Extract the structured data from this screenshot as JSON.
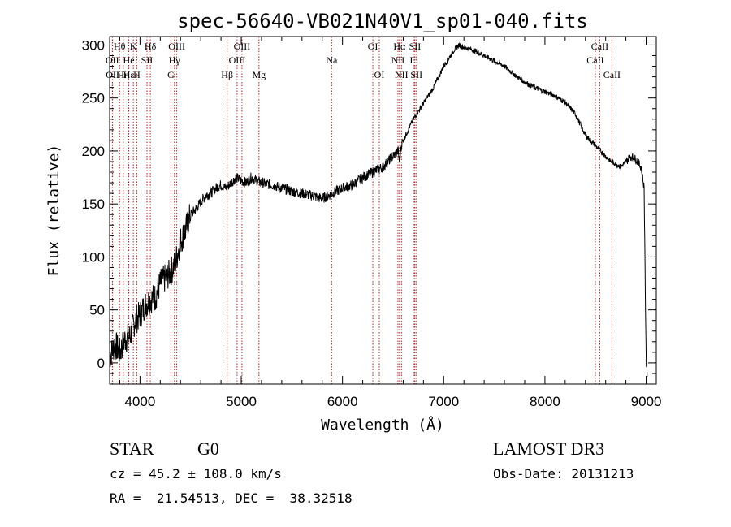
{
  "chart_data": {
    "type": "line",
    "title": "spec-56640-VB021N40V1_sp01-040.fits",
    "xlabel": "Wavelength (Å)",
    "ylabel": "Flux (relative)",
    "xlim": [
      3700,
      9100
    ],
    "ylim": [
      -20,
      308
    ],
    "xticks": [
      4000,
      5000,
      6000,
      7000,
      8000,
      9000
    ],
    "yticks": [
      0,
      50,
      100,
      150,
      200,
      250,
      300
    ],
    "grid": false,
    "series": [
      {
        "name": "flux",
        "x": [
          3700,
          3750,
          3800,
          3850,
          3900,
          3950,
          4000,
          4050,
          4100,
          4150,
          4200,
          4250,
          4300,
          4350,
          4400,
          4450,
          4500,
          4550,
          4600,
          4650,
          4700,
          4750,
          4800,
          4850,
          4900,
          4950,
          5000,
          5050,
          5100,
          5150,
          5200,
          5300,
          5400,
          5500,
          5600,
          5700,
          5800,
          5900,
          6000,
          6100,
          6200,
          6300,
          6400,
          6500,
          6550,
          6563,
          6580,
          6600,
          6650,
          6700,
          6800,
          6900,
          7000,
          7100,
          7150,
          7200,
          7300,
          7400,
          7500,
          7600,
          7700,
          7800,
          7900,
          8000,
          8100,
          8200,
          8300,
          8400,
          8500,
          8550,
          8600,
          8650,
          8700,
          8750,
          8800,
          8850,
          8900,
          8950,
          8980,
          9000,
          9010
        ],
        "y": [
          5,
          18,
          10,
          22,
          25,
          40,
          45,
          55,
          60,
          62,
          75,
          80,
          85,
          95,
          115,
          125,
          140,
          145,
          152,
          158,
          160,
          165,
          168,
          165,
          170,
          175,
          172,
          170,
          175,
          172,
          170,
          168,
          165,
          162,
          160,
          158,
          155,
          160,
          165,
          168,
          175,
          180,
          185,
          195,
          200,
          190,
          205,
          210,
          220,
          230,
          245,
          260,
          280,
          295,
          300,
          298,
          295,
          290,
          285,
          280,
          272,
          265,
          260,
          256,
          252,
          246,
          235,
          215,
          205,
          200,
          195,
          190,
          188,
          185,
          190,
          195,
          192,
          185,
          165,
          0,
          -10
        ]
      }
    ],
    "lines": [
      {
        "label": "Hθ",
        "x": 3798,
        "row": 1
      },
      {
        "label": "OII",
        "x": 3727,
        "row": 2
      },
      {
        "label": "OII",
        "x": 3729,
        "row": 3
      },
      {
        "label": "Hε",
        "x": 3889,
        "row": 3
      },
      {
        "label": "He",
        "x": 3889,
        "row": 2
      },
      {
        "label": "Hη",
        "x": 3835,
        "row": 3
      },
      {
        "label": "K",
        "x": 3934,
        "row": 1
      },
      {
        "label": "H",
        "x": 3968,
        "row": 3
      },
      {
        "label": "SII",
        "x": 4069,
        "row": 2
      },
      {
        "label": "Hδ",
        "x": 4102,
        "row": 1
      },
      {
        "label": "OIII",
        "x": 4363,
        "row": 1
      },
      {
        "label": "Hγ",
        "x": 4340,
        "row": 2
      },
      {
        "label": "G",
        "x": 4305,
        "row": 3
      },
      {
        "label": "Hβ",
        "x": 4861,
        "row": 3
      },
      {
        "label": "OIII",
        "x": 4959,
        "row": 2
      },
      {
        "label": "OIII",
        "x": 5007,
        "row": 1
      },
      {
        "label": "Mg",
        "x": 5175,
        "row": 3
      },
      {
        "label": "Na",
        "x": 5893,
        "row": 2
      },
      {
        "label": "OI",
        "x": 6300,
        "row": 1
      },
      {
        "label": "OI",
        "x": 6364,
        "row": 3
      },
      {
        "label": "Hα",
        "x": 6563,
        "row": 1
      },
      {
        "label": "NII",
        "x": 6548,
        "row": 2
      },
      {
        "label": "NII",
        "x": 6583,
        "row": 3
      },
      {
        "label": "SII",
        "x": 6716,
        "row": 1
      },
      {
        "label": "Li",
        "x": 6708,
        "row": 2
      },
      {
        "label": "SII",
        "x": 6731,
        "row": 3
      },
      {
        "label": "CaII",
        "x": 8542,
        "row": 1
      },
      {
        "label": "CaII",
        "x": 8498,
        "row": 2
      },
      {
        "label": "CaII",
        "x": 8662,
        "row": 3
      }
    ]
  },
  "info": {
    "class_label": "STAR",
    "subclass_label": "G0",
    "survey_label": "LAMOST DR3",
    "cz_text": "cz = 45.2 ± 108.0 km/s",
    "obs_date_text": "Obs-Date: 20131213",
    "radec_text": "RA =  21.54513, DEC =  38.32518"
  }
}
